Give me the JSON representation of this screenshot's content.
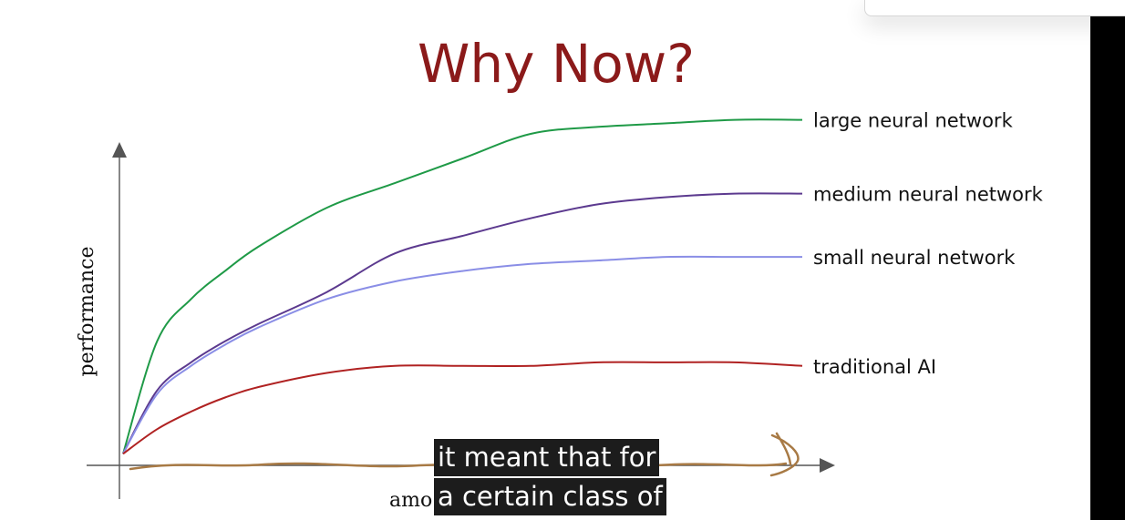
{
  "slide": {
    "title": "Why Now?",
    "title_color": "#8b1a1a"
  },
  "subtitles": {
    "line1": "it meant that for",
    "line2": "a certain class of"
  },
  "chart_data": {
    "type": "line",
    "title": "Why Now?",
    "xlabel": "amo",
    "ylabel": "performance",
    "xlim": [
      0,
      100
    ],
    "ylim": [
      0,
      100
    ],
    "grid": false,
    "legend": "series labels at right end of each line",
    "series": [
      {
        "name": "large neural network",
        "color": "#1f9a47",
        "x": [
          0,
          5,
          10,
          15,
          20,
          30,
          40,
          50,
          60,
          70,
          80,
          90,
          100
        ],
        "y": [
          2,
          34,
          46,
          54,
          61,
          72,
          79,
          86,
          93,
          95,
          96,
          97,
          97
        ]
      },
      {
        "name": "medium neural network",
        "color": "#5c3a8f",
        "x": [
          0,
          5,
          10,
          15,
          20,
          30,
          40,
          50,
          60,
          70,
          80,
          90,
          100
        ],
        "y": [
          2,
          20,
          28,
          34,
          39,
          48,
          59,
          64,
          69,
          73,
          75,
          76,
          76
        ]
      },
      {
        "name": "small neural network",
        "color": "#8a8ee6",
        "x": [
          0,
          5,
          10,
          15,
          20,
          30,
          40,
          50,
          60,
          70,
          80,
          90,
          100
        ],
        "y": [
          2,
          19,
          27,
          33,
          38,
          46,
          51,
          54,
          56,
          57,
          58,
          58,
          58
        ]
      },
      {
        "name": "traditional AI",
        "color": "#b02222",
        "x": [
          0,
          5,
          10,
          15,
          20,
          30,
          40,
          50,
          60,
          70,
          80,
          90,
          100
        ],
        "y": [
          2,
          9,
          14,
          18,
          21,
          25,
          27,
          27,
          27,
          28,
          28,
          28,
          27
        ]
      }
    ]
  }
}
